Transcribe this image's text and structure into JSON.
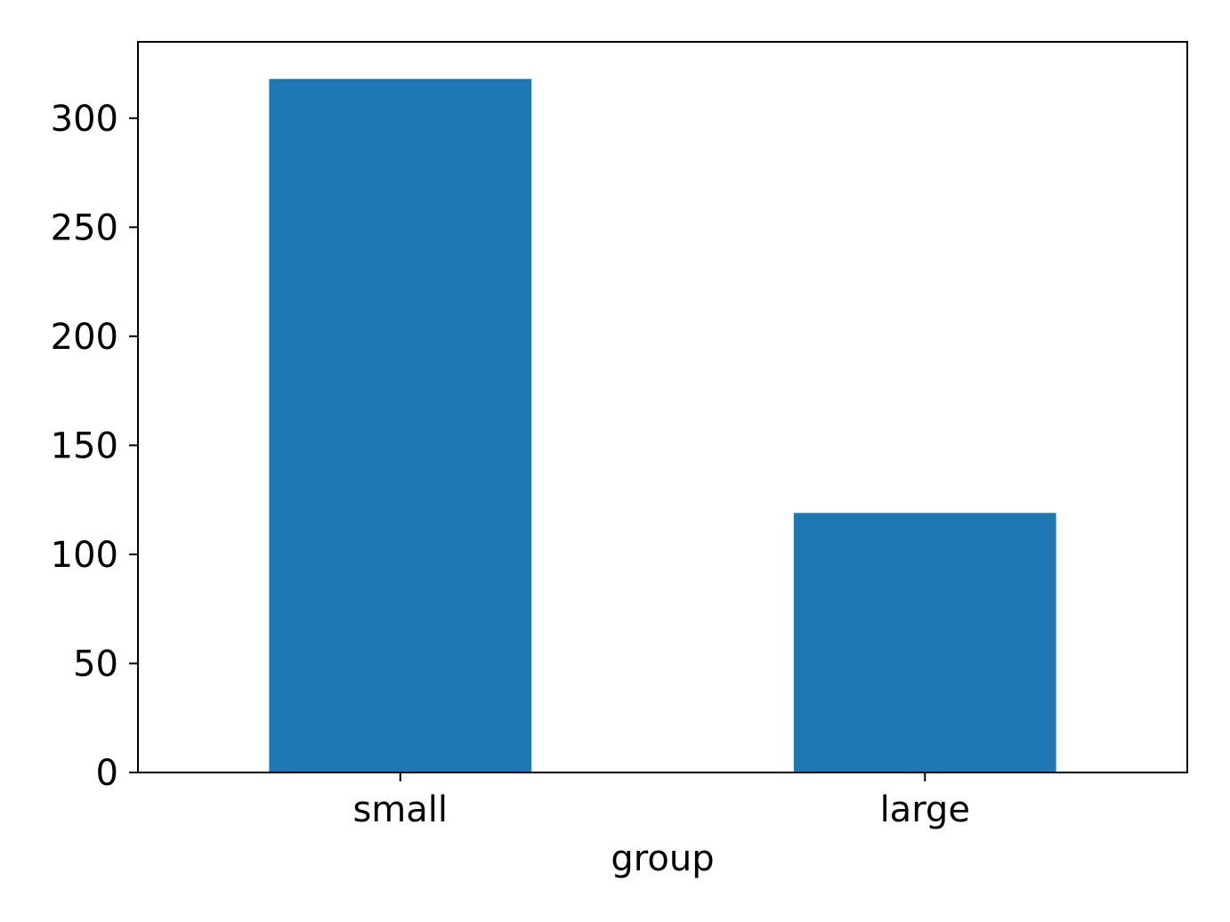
{
  "chart_data": {
    "type": "bar",
    "title": "",
    "xlabel": "group",
    "ylabel": "",
    "categories": [
      "small",
      "large"
    ],
    "values": [
      318,
      119
    ],
    "ylim": [
      0,
      335
    ],
    "yticks": [
      "0",
      "50",
      "100",
      "150",
      "200",
      "250",
      "300"
    ],
    "grid": false,
    "legend": "none",
    "bar_color": "#1f77b4"
  }
}
